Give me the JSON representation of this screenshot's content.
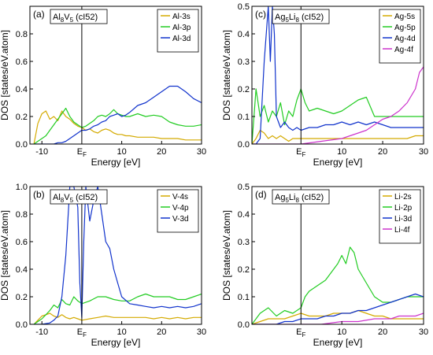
{
  "chart_data": [
    {
      "type": "line",
      "panel_label": "(a)",
      "box_label_main": "Al",
      "box_label_sub": "8",
      "box_label_main2": "V",
      "box_label_sub2": "5",
      "box_label_tail": " (cI52)",
      "xlabel": "Energy [eV]",
      "ylabel": "DOS [states/eV.atom]",
      "xlim": [
        -13,
        30
      ],
      "ylim": [
        0,
        1.0
      ],
      "x_ticks": [
        -10,
        10,
        20,
        30
      ],
      "y_ticks": [
        0.0,
        0.2,
        0.4,
        0.6,
        0.8
      ],
      "fermi_energy": 0,
      "fermi_label": "E",
      "fermi_sub": "F",
      "legend_position": "top-right",
      "series": [
        {
          "name": "Al-3s",
          "color": "#d4aa00",
          "x": [
            -12,
            -11,
            -10,
            -9,
            -8,
            -7,
            -6,
            -5,
            -4,
            -3,
            -2,
            -1,
            0,
            1,
            2,
            3,
            4,
            5,
            6,
            7,
            8,
            9,
            10,
            11,
            12,
            14,
            16,
            18,
            20,
            22,
            24,
            26,
            28,
            30
          ],
          "y": [
            0.0,
            0.15,
            0.22,
            0.24,
            0.18,
            0.2,
            0.17,
            0.24,
            0.2,
            0.18,
            0.15,
            0.13,
            0.12,
            0.1,
            0.11,
            0.09,
            0.08,
            0.1,
            0.11,
            0.1,
            0.08,
            0.07,
            0.07,
            0.06,
            0.06,
            0.05,
            0.05,
            0.05,
            0.04,
            0.04,
            0.04,
            0.03,
            0.03,
            0.03
          ]
        },
        {
          "name": "Al-3p",
          "color": "#22cc22",
          "x": [
            -12,
            -11,
            -10,
            -9,
            -8,
            -7,
            -6,
            -5,
            -4,
            -3,
            -2,
            -1,
            0,
            1,
            2,
            3,
            4,
            5,
            6,
            7,
            8,
            9,
            10,
            11,
            12,
            14,
            16,
            18,
            20,
            22,
            24,
            26,
            28,
            30
          ],
          "y": [
            0.0,
            0.02,
            0.04,
            0.06,
            0.1,
            0.14,
            0.18,
            0.22,
            0.26,
            0.2,
            0.16,
            0.14,
            0.12,
            0.13,
            0.15,
            0.17,
            0.2,
            0.21,
            0.2,
            0.22,
            0.25,
            0.22,
            0.21,
            0.2,
            0.2,
            0.22,
            0.2,
            0.21,
            0.2,
            0.16,
            0.14,
            0.13,
            0.13,
            0.14
          ]
        },
        {
          "name": "Al-3d",
          "color": "#1133cc",
          "x": [
            -12,
            -11,
            -10,
            -9,
            -8,
            -7,
            -6,
            -5,
            -4,
            -3,
            -2,
            -1,
            0,
            1,
            2,
            3,
            4,
            5,
            6,
            7,
            8,
            9,
            10,
            11,
            12,
            14,
            16,
            18,
            20,
            22,
            24,
            26,
            28,
            30
          ],
          "y": [
            0.0,
            0.0,
            0.0,
            0.0,
            0.0,
            0.0,
            0.01,
            0.01,
            0.02,
            0.04,
            0.06,
            0.08,
            0.1,
            0.1,
            0.11,
            0.13,
            0.14,
            0.16,
            0.17,
            0.2,
            0.21,
            0.22,
            0.2,
            0.21,
            0.23,
            0.28,
            0.3,
            0.34,
            0.38,
            0.42,
            0.42,
            0.38,
            0.33,
            0.3
          ]
        }
      ]
    },
    {
      "type": "line",
      "panel_label": "(c)",
      "box_label_main": "Ag",
      "box_label_sub": "5",
      "box_label_main2": "Li",
      "box_label_sub2": "8",
      "box_label_tail": " (cI52)",
      "xlabel": "Energy [eV]",
      "ylabel": "DOS [states/eV.atom]",
      "xlim": [
        -12,
        30
      ],
      "ylim": [
        0,
        0.5
      ],
      "x_ticks": [
        10,
        20,
        30
      ],
      "y_ticks": [
        0.0,
        0.1,
        0.2,
        0.3,
        0.4,
        0.5
      ],
      "fermi_energy": 0,
      "fermi_label": "E",
      "fermi_sub": "F",
      "legend_position": "top-right",
      "series": [
        {
          "name": "Ag-5s",
          "color": "#d4aa00",
          "x": [
            -12,
            -11,
            -10,
            -9,
            -8,
            -7,
            -6,
            -5,
            -4,
            -3,
            -2,
            -1,
            0,
            2,
            4,
            6,
            8,
            10,
            12,
            14,
            16,
            18,
            20,
            22,
            24,
            26,
            28,
            30
          ],
          "y": [
            0.0,
            0.02,
            0.05,
            0.04,
            0.02,
            0.03,
            0.02,
            0.03,
            0.02,
            0.01,
            0.02,
            0.02,
            0.02,
            0.02,
            0.02,
            0.02,
            0.02,
            0.02,
            0.02,
            0.02,
            0.02,
            0.02,
            0.02,
            0.02,
            0.02,
            0.02,
            0.03,
            0.03
          ]
        },
        {
          "name": "Ag-5p",
          "color": "#22cc22",
          "x": [
            -12,
            -11,
            -10,
            -9,
            -8,
            -7,
            -6,
            -5,
            -4,
            -3,
            -2,
            -1,
            0,
            1,
            2,
            4,
            6,
            8,
            10,
            12,
            14,
            16,
            18,
            20,
            22,
            24,
            26,
            28,
            30
          ],
          "y": [
            0.0,
            0.2,
            0.1,
            0.14,
            0.08,
            0.12,
            0.1,
            0.15,
            0.07,
            0.12,
            0.1,
            0.16,
            0.2,
            0.15,
            0.12,
            0.13,
            0.12,
            0.11,
            0.12,
            0.14,
            0.16,
            0.17,
            0.1,
            0.1,
            0.1,
            0.1,
            0.1,
            0.1,
            0.1
          ]
        },
        {
          "name": "Ag-4d",
          "color": "#1133cc",
          "x": [
            -12,
            -11,
            -10,
            -9,
            -8,
            -7.5,
            -7,
            -6.5,
            -6,
            -5,
            -4,
            -3,
            -2,
            -1,
            0,
            2,
            4,
            6,
            8,
            10,
            12,
            14,
            16,
            18,
            20,
            22,
            24,
            26,
            28,
            30
          ],
          "y": [
            0.0,
            0.0,
            0.02,
            0.3,
            0.5,
            0.3,
            0.5,
            0.4,
            0.1,
            0.06,
            0.08,
            0.06,
            0.05,
            0.06,
            0.05,
            0.06,
            0.06,
            0.07,
            0.07,
            0.08,
            0.07,
            0.08,
            0.07,
            0.08,
            0.07,
            0.06,
            0.06,
            0.06,
            0.06,
            0.06
          ]
        },
        {
          "name": "Ag-4f",
          "color": "#cc33cc",
          "x": [
            -12,
            0,
            5,
            10,
            14,
            16,
            18,
            20,
            22,
            24,
            26,
            28,
            29,
            30
          ],
          "y": [
            0.0,
            0.0,
            0.01,
            0.02,
            0.04,
            0.05,
            0.07,
            0.09,
            0.1,
            0.12,
            0.15,
            0.2,
            0.26,
            0.28
          ]
        }
      ]
    },
    {
      "type": "line",
      "panel_label": "(b)",
      "box_label_main": "Al",
      "box_label_sub": "8",
      "box_label_main2": "V",
      "box_label_sub2": "5",
      "box_label_tail": " (cI52)",
      "xlabel": "Energy [eV]",
      "ylabel": "DOS [states/eV.atom]",
      "xlim": [
        -13,
        30
      ],
      "ylim": [
        0,
        1.0
      ],
      "x_ticks": [
        -10,
        10,
        20,
        30
      ],
      "y_ticks": [
        0.0,
        0.2,
        0.4,
        0.6,
        0.8,
        1.0
      ],
      "fermi_energy": 0,
      "fermi_label": "E",
      "fermi_sub": "F",
      "legend_position": "top-right",
      "series": [
        {
          "name": "V-4s",
          "color": "#d4aa00",
          "x": [
            -12,
            -11,
            -10,
            -9,
            -8,
            -7,
            -6,
            -5,
            -4,
            -3,
            -2,
            -1,
            0,
            2,
            4,
            6,
            8,
            10,
            12,
            14,
            16,
            18,
            20,
            22,
            24,
            26,
            28,
            30
          ],
          "y": [
            0.0,
            0.03,
            0.06,
            0.07,
            0.08,
            0.06,
            0.05,
            0.07,
            0.05,
            0.04,
            0.05,
            0.04,
            0.03,
            0.04,
            0.05,
            0.06,
            0.05,
            0.05,
            0.05,
            0.05,
            0.05,
            0.04,
            0.05,
            0.04,
            0.05,
            0.04,
            0.05,
            0.05
          ]
        },
        {
          "name": "V-4p",
          "color": "#22cc22",
          "x": [
            -12,
            -11,
            -10,
            -9,
            -8,
            -7,
            -6,
            -5,
            -4,
            -3,
            -2,
            -1,
            0,
            2,
            4,
            6,
            8,
            10,
            12,
            14,
            16,
            18,
            20,
            22,
            24,
            26,
            28,
            30
          ],
          "y": [
            0.0,
            0.02,
            0.04,
            0.07,
            0.1,
            0.14,
            0.12,
            0.18,
            0.15,
            0.14,
            0.2,
            0.17,
            0.15,
            0.17,
            0.2,
            0.2,
            0.18,
            0.17,
            0.17,
            0.2,
            0.22,
            0.2,
            0.2,
            0.2,
            0.18,
            0.18,
            0.2,
            0.22
          ]
        },
        {
          "name": "V-3d",
          "color": "#1133cc",
          "x": [
            -12,
            -10,
            -8,
            -7,
            -6,
            -5,
            -4,
            -3,
            -2,
            -1,
            -0.5,
            0,
            0.5,
            1,
            2,
            3,
            4,
            5,
            6,
            7,
            8,
            9,
            10,
            12,
            14,
            16,
            18,
            20,
            22,
            24,
            26,
            28,
            30
          ],
          "y": [
            0.0,
            0.0,
            0.01,
            0.03,
            0.06,
            0.2,
            0.5,
            1.0,
            1.0,
            0.85,
            0.3,
            0.05,
            0.6,
            1.0,
            0.75,
            0.9,
            1.0,
            0.8,
            0.6,
            0.55,
            0.4,
            0.3,
            0.2,
            0.15,
            0.14,
            0.13,
            0.12,
            0.13,
            0.12,
            0.13,
            0.12,
            0.13,
            0.15
          ]
        }
      ]
    },
    {
      "type": "line",
      "panel_label": "(d)",
      "box_label_main": "Ag",
      "box_label_sub": "5",
      "box_label_main2": "Li",
      "box_label_sub2": "8",
      "box_label_tail": " (cI52)",
      "xlabel": "Energy [eV]",
      "ylabel": "DOS [states/eV.atom]",
      "xlim": [
        -12,
        30
      ],
      "ylim": [
        0,
        0.5
      ],
      "x_ticks": [
        10,
        20,
        30
      ],
      "y_ticks": [
        0.0,
        0.1,
        0.2,
        0.3,
        0.4,
        0.5
      ],
      "fermi_energy": 0,
      "fermi_label": "E",
      "fermi_sub": "F",
      "legend_position": "top-right",
      "series": [
        {
          "name": "Li-2s",
          "color": "#d4aa00",
          "x": [
            -12,
            -10,
            -8,
            -6,
            -4,
            -2,
            0,
            2,
            4,
            6,
            8,
            10,
            12,
            14,
            16,
            18,
            20,
            22,
            24,
            26,
            28,
            30
          ],
          "y": [
            0.0,
            0.01,
            0.02,
            0.02,
            0.02,
            0.03,
            0.04,
            0.03,
            0.03,
            0.03,
            0.04,
            0.04,
            0.04,
            0.05,
            0.04,
            0.03,
            0.03,
            0.02,
            0.02,
            0.02,
            0.02,
            0.02
          ]
        },
        {
          "name": "Li-2p",
          "color": "#22cc22",
          "x": [
            -12,
            -10,
            -8,
            -6,
            -4,
            -2,
            0,
            1,
            2,
            4,
            6,
            8,
            9,
            10,
            11,
            12,
            13,
            14,
            16,
            18,
            20,
            22,
            24,
            26,
            28,
            30
          ],
          "y": [
            0.0,
            0.04,
            0.06,
            0.03,
            0.05,
            0.04,
            0.06,
            0.1,
            0.12,
            0.14,
            0.16,
            0.2,
            0.22,
            0.25,
            0.22,
            0.28,
            0.26,
            0.2,
            0.15,
            0.1,
            0.08,
            0.08,
            0.09,
            0.1,
            0.1,
            0.1
          ]
        },
        {
          "name": "Li-3d",
          "color": "#1133cc",
          "x": [
            -12,
            -10,
            -8,
            -6,
            -4,
            -2,
            0,
            2,
            4,
            6,
            8,
            10,
            12,
            14,
            16,
            18,
            20,
            22,
            24,
            26,
            28,
            30
          ],
          "y": [
            0.0,
            0.0,
            0.0,
            0.0,
            0.01,
            0.01,
            0.02,
            0.02,
            0.02,
            0.03,
            0.03,
            0.04,
            0.04,
            0.05,
            0.05,
            0.06,
            0.07,
            0.08,
            0.09,
            0.1,
            0.11,
            0.1
          ]
        },
        {
          "name": "Li-4f",
          "color": "#cc33cc",
          "x": [
            -12,
            0,
            5,
            10,
            14,
            18,
            20,
            22,
            24,
            26,
            28,
            30
          ],
          "y": [
            0.0,
            0.0,
            0.0,
            0.01,
            0.01,
            0.02,
            0.02,
            0.02,
            0.03,
            0.03,
            0.03,
            0.04
          ]
        }
      ]
    }
  ]
}
